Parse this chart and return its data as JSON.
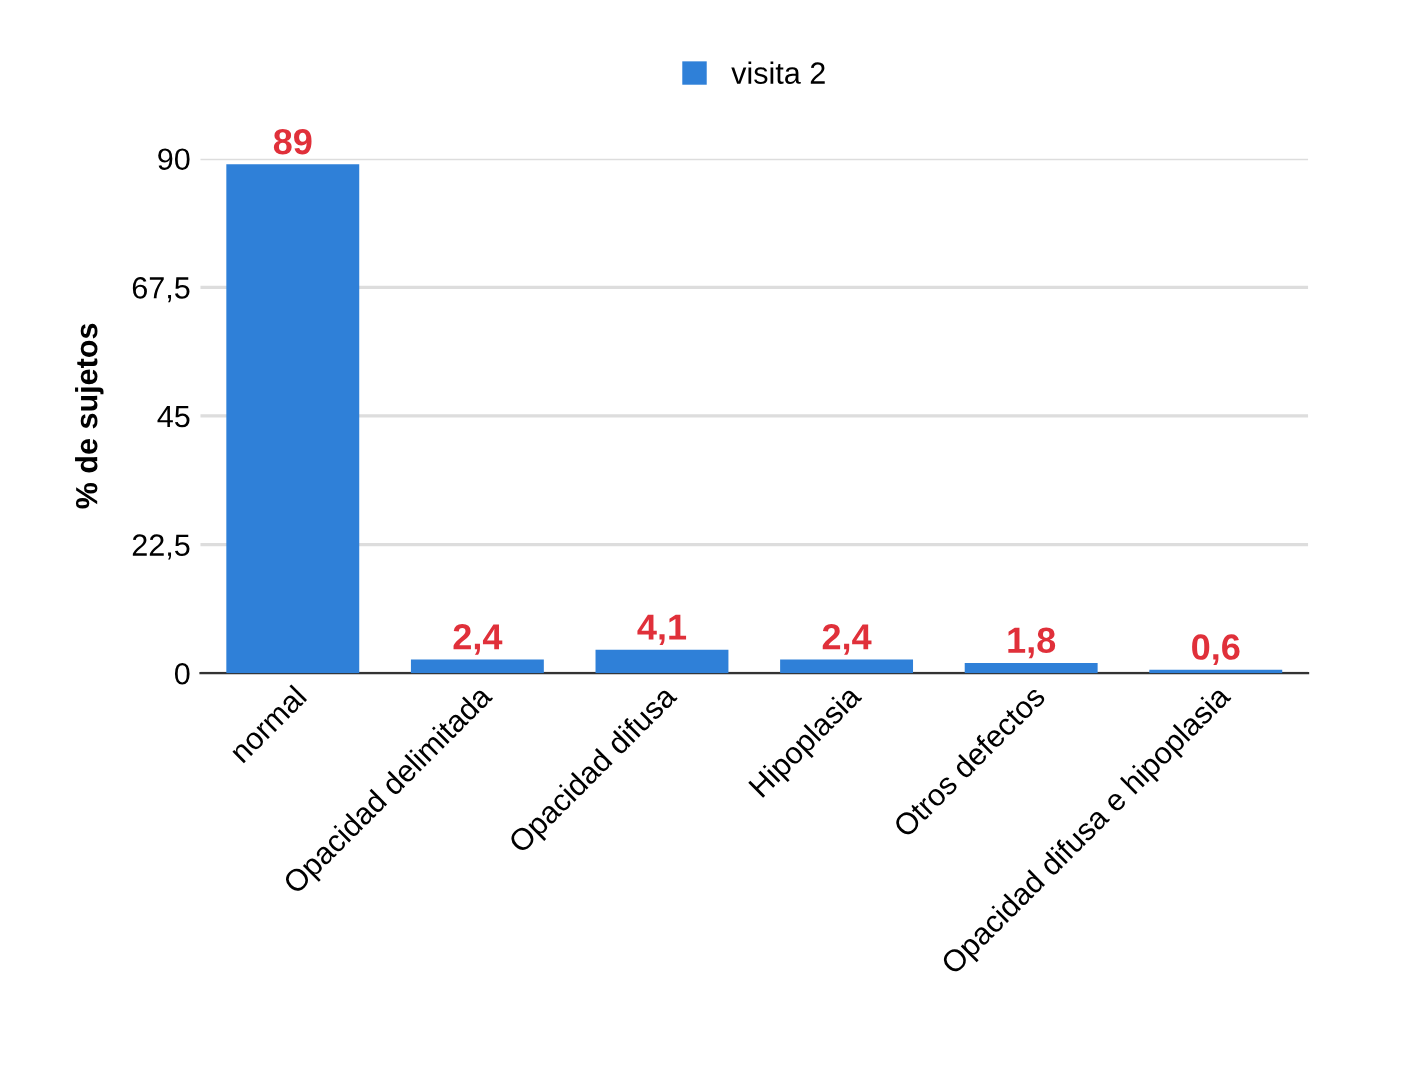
{
  "chart_data": {
    "type": "bar",
    "ylabel": "% de sujetos",
    "categories": [
      "normal",
      "Opacidad delimitada",
      "Opacidad difusa",
      "Hipoplasia",
      "Otros defectos",
      "Opacidad difusa e hipoplasia"
    ],
    "series": [
      {
        "name": "visita 2",
        "color": "#2f80d8",
        "values": [
          89,
          2.4,
          4.1,
          2.4,
          1.8,
          0.6
        ],
        "value_labels": [
          "89",
          "2,4",
          "4,1",
          "2,4",
          "1,8",
          "0,6"
        ]
      }
    ],
    "ylim": [
      0,
      90
    ],
    "yticks": [
      0,
      {
        "value": 22.5,
        "label": "22,5"
      },
      45,
      {
        "value": 67.5,
        "label": "67,5"
      },
      90
    ],
    "grid": "y",
    "legend": "top"
  }
}
